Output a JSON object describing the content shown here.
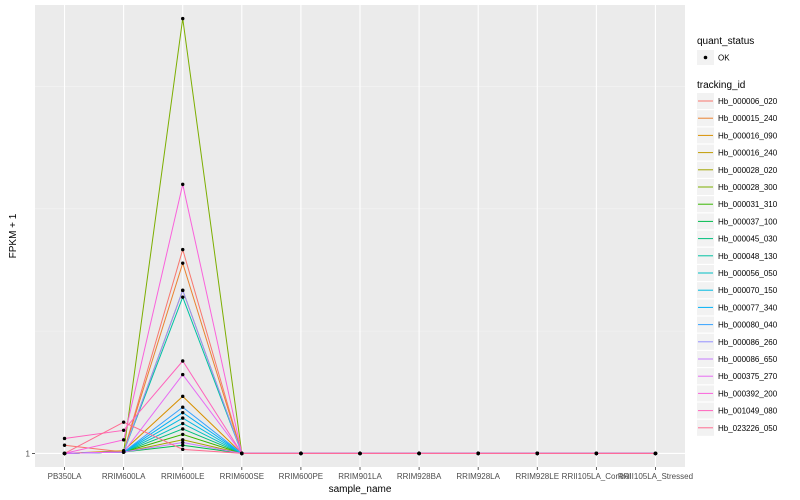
{
  "chart_data": {
    "type": "line",
    "xlabel": "sample_name",
    "ylabel": "FPKM + 1",
    "categories": [
      "PB350LA",
      "RRIM600LA",
      "RRIM600LE",
      "RRIM600SE",
      "RRIM600PE",
      "RRIM901LA",
      "RRIM928BA",
      "RRIM928LA",
      "RRIM928LE",
      "RRII105LA_Control",
      "RRII105LA_Stressed"
    ],
    "y_ticks": [
      {
        "value": 1,
        "label": "1"
      }
    ],
    "ylim": [
      0.99,
      1.33
    ],
    "grid": true,
    "legend_position": "right",
    "quant_status_legend": {
      "title": "quant_status",
      "entries": [
        "OK"
      ]
    },
    "tracking_legend_title": "tracking_id",
    "series": [
      {
        "name": "Hb_000006_020",
        "color": "#F8766D",
        "values": [
          1.006,
          1.001,
          1.15,
          1,
          1,
          1,
          1,
          1,
          1,
          1,
          1
        ]
      },
      {
        "name": "Hb_000015_240",
        "color": "#EA8331",
        "values": [
          1,
          1.001,
          1.14,
          1,
          1,
          1,
          1,
          1,
          1,
          1,
          1
        ]
      },
      {
        "name": "Hb_000016_090",
        "color": "#D89000",
        "values": [
          1,
          1.002,
          1.042,
          1,
          1,
          1,
          1,
          1,
          1,
          1,
          1
        ]
      },
      {
        "name": "Hb_000016_240",
        "color": "#C09B00",
        "values": [
          1,
          1.001,
          1.12,
          1,
          1,
          1,
          1,
          1,
          1,
          1,
          1
        ]
      },
      {
        "name": "Hb_000028_020",
        "color": "#A3A500",
        "values": [
          1,
          1.001,
          1.01,
          1,
          1,
          1,
          1,
          1,
          1,
          1,
          1
        ]
      },
      {
        "name": "Hb_000028_300",
        "color": "#7CAE00",
        "values": [
          1,
          1.001,
          1.32,
          1,
          1,
          1,
          1,
          1,
          1,
          1,
          1
        ]
      },
      {
        "name": "Hb_000031_310",
        "color": "#39B600",
        "values": [
          1,
          1.001,
          1.014,
          1,
          1,
          1,
          1,
          1,
          1,
          1,
          1
        ]
      },
      {
        "name": "Hb_000037_100",
        "color": "#00BB4E",
        "values": [
          1,
          1.001,
          1.006,
          1,
          1,
          1,
          1,
          1,
          1,
          1,
          1
        ]
      },
      {
        "name": "Hb_000045_030",
        "color": "#00BF7D",
        "values": [
          1,
          1.001,
          1.018,
          1,
          1,
          1,
          1,
          1,
          1,
          1,
          1
        ]
      },
      {
        "name": "Hb_000048_130",
        "color": "#00C1A3",
        "values": [
          1,
          1.001,
          1.115,
          1,
          1,
          1,
          1,
          1,
          1,
          1,
          1
        ]
      },
      {
        "name": "Hb_000056_050",
        "color": "#00BFC4",
        "values": [
          1,
          1.001,
          1.022,
          1,
          1,
          1,
          1,
          1,
          1,
          1,
          1
        ]
      },
      {
        "name": "Hb_000070_150",
        "color": "#00BAE0",
        "values": [
          1,
          1.001,
          1.026,
          1,
          1,
          1,
          1,
          1,
          1,
          1,
          1
        ]
      },
      {
        "name": "Hb_000077_340",
        "color": "#00B0F6",
        "values": [
          1,
          1.001,
          1.03,
          1,
          1,
          1,
          1,
          1,
          1,
          1,
          1
        ]
      },
      {
        "name": "Hb_000080_040",
        "color": "#35A2FF",
        "values": [
          1,
          1.001,
          1.034,
          1,
          1,
          1,
          1,
          1,
          1,
          1,
          1
        ]
      },
      {
        "name": "Hb_000086_260",
        "color": "#9590FF",
        "values": [
          1,
          1.001,
          1.12,
          1,
          1,
          1,
          1,
          1,
          1,
          1,
          1
        ]
      },
      {
        "name": "Hb_000086_650",
        "color": "#C77CFF",
        "values": [
          1,
          1.001,
          1.008,
          1,
          1,
          1,
          1,
          1,
          1,
          1,
          1
        ]
      },
      {
        "name": "Hb_000375_270",
        "color": "#E76BF3",
        "values": [
          1,
          1.001,
          1.058,
          1,
          1,
          1,
          1,
          1,
          1,
          1,
          1
        ]
      },
      {
        "name": "Hb_000392_200",
        "color": "#FA62DB",
        "values": [
          1,
          1.01,
          1.198,
          1,
          1,
          1,
          1,
          1,
          1,
          1,
          1
        ]
      },
      {
        "name": "Hb_001049_080",
        "color": "#FF62BC",
        "values": [
          1.011,
          1.017,
          1.068,
          1,
          1,
          1,
          1,
          1,
          1,
          1,
          1
        ]
      },
      {
        "name": "Hb_023226_050",
        "color": "#FF6C91",
        "values": [
          1,
          1.023,
          1.003,
          1,
          1,
          1,
          1,
          1,
          1,
          1,
          1
        ]
      }
    ]
  }
}
